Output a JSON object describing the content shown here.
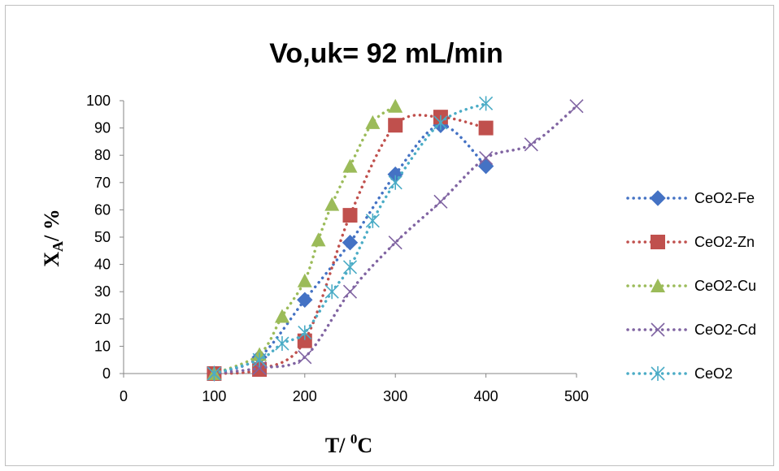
{
  "chart_data": {
    "type": "scatter",
    "title": "Vo,uk= 92 mL/min",
    "xlabel": {
      "base": "T/ ",
      "sup": "0",
      "unit": "C"
    },
    "ylabel": {
      "main": "X",
      "sub": "A",
      "rest": "/ %"
    },
    "xlim": [
      0,
      500
    ],
    "ylim": [
      0,
      100
    ],
    "xticks": [
      0,
      100,
      200,
      300,
      400,
      500
    ],
    "yticks": [
      0,
      10,
      20,
      30,
      40,
      50,
      60,
      70,
      80,
      90,
      100
    ],
    "grid": false,
    "legend_position": "right",
    "series": [
      {
        "name": "CeO2-Fe",
        "color": "#4472C4",
        "marker": "diamond",
        "x": [
          100,
          150,
          200,
          250,
          300,
          350,
          400
        ],
        "y": [
          0,
          6,
          27,
          48,
          73,
          91,
          76
        ]
      },
      {
        "name": "CeO2-Zn",
        "color": "#C0504D",
        "marker": "square",
        "x": [
          100,
          150,
          200,
          250,
          300,
          350,
          400
        ],
        "y": [
          0,
          1.5,
          12,
          58,
          91,
          94,
          90
        ]
      },
      {
        "name": "CeO2-Cu",
        "color": "#9BBB59",
        "marker": "triangle",
        "x": [
          100,
          150,
          175,
          200,
          215,
          230,
          250,
          275,
          300
        ],
        "y": [
          0,
          7,
          21,
          34,
          49,
          62,
          76,
          92,
          98
        ]
      },
      {
        "name": "CeO2-Cd",
        "color": "#8064A2",
        "marker": "x",
        "x": [
          100,
          150,
          200,
          250,
          300,
          350,
          400,
          450,
          500
        ],
        "y": [
          0,
          2,
          6,
          30,
          48,
          63,
          79,
          84,
          98
        ]
      },
      {
        "name": "CeO2",
        "color": "#4BACC6",
        "marker": "star",
        "x": [
          100,
          150,
          175,
          200,
          230,
          250,
          275,
          300,
          350,
          400
        ],
        "y": [
          0,
          5,
          11,
          15,
          30,
          39,
          56,
          70,
          92,
          99
        ]
      }
    ]
  }
}
